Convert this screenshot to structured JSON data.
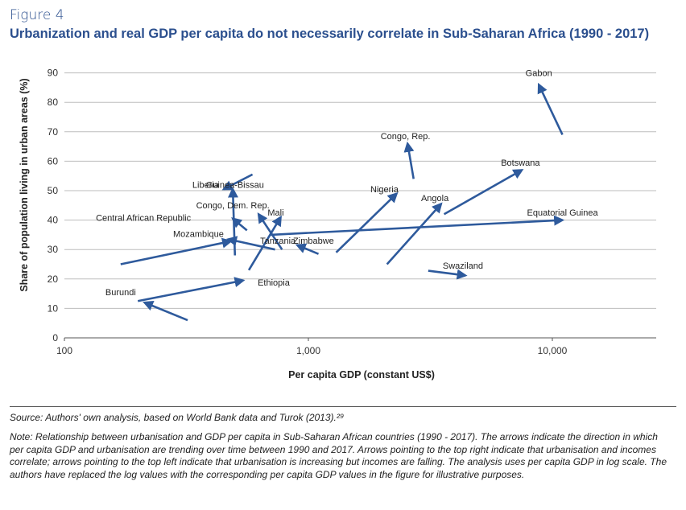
{
  "figure_label": "Figure 4",
  "source_text": "Source: Authors' own analysis, based on World Bank data and Turok (2013).²⁹",
  "note_text": "Note:  Relationship between urbanisation and GDP per capita in Sub-Saharan African countries (1990 - 2017). The arrows indicate the direction in which per capita GDP and urbanisation are trending over time between 1990 and 2017. Arrows pointing to the top right indicate that urbanisation and incomes correlate; arrows pointing to the top left indicate that urbanisation is increasing but incomes are falling. The analysis uses per capita GDP in log scale. The authors have replaced the log values with the corresponding per capita GDP values in the figure for illustrative purposes.",
  "colors": {
    "accent": "#2b4f8e",
    "arrow": "#2e5a9c",
    "grid": "#bdbdbd"
  },
  "chart_data": {
    "type": "scatter",
    "title": "Urbanization and real GDP per capita do not necessarily correlate in Sub-Saharan Africa (1990 - 2017)",
    "xlabel": "Per capita GDP (constant US$)",
    "ylabel": "Share of population living in urban areas (%)",
    "xscale": "log",
    "xlim": [
      100,
      30000
    ],
    "ylim": [
      0,
      92
    ],
    "xticks": [
      100,
      1000,
      10000
    ],
    "xtick_labels": [
      "100",
      "1,000",
      "10,000"
    ],
    "yticks": [
      0,
      10,
      20,
      30,
      40,
      50,
      60,
      70,
      80,
      90
    ],
    "grid": "horizontal",
    "series": [
      {
        "name": "Gabon",
        "from": [
          11000,
          69
        ],
        "to": [
          8800,
          86
        ]
      },
      {
        "name": "Congo, Rep.",
        "from": [
          2700,
          54
        ],
        "to": [
          2550,
          66
        ]
      },
      {
        "name": "Botswana",
        "from": [
          3600,
          42
        ],
        "to": [
          7500,
          57
        ]
      },
      {
        "name": "Liberia",
        "from": [
          590,
          55.5
        ],
        "to": [
          450,
          50.5
        ]
      },
      {
        "name": "Guinea-Bissau",
        "from": [
          500,
          28
        ],
        "to": [
          490,
          50.5
        ]
      },
      {
        "name": "Nigeria",
        "from": [
          1300,
          29
        ],
        "to": [
          2300,
          49
        ]
      },
      {
        "name": "Angola",
        "from": [
          2100,
          25
        ],
        "to": [
          3500,
          45.5
        ]
      },
      {
        "name": "Congo, Dem. Rep.",
        "from": [
          780,
          30
        ],
        "to": [
          625,
          42
        ]
      },
      {
        "name": "Mali",
        "from": [
          570,
          23
        ],
        "to": [
          770,
          41
        ]
      },
      {
        "name": "Equatorial Guinea",
        "from": [
          700,
          35
        ],
        "to": [
          11000,
          40
        ]
      },
      {
        "name": "Central African Republic",
        "from": [
          560,
          36.5
        ],
        "to": [
          490,
          40.5
        ]
      },
      {
        "name": "Mozambique",
        "from": [
          170,
          25
        ],
        "to": [
          480,
          32.8
        ]
      },
      {
        "name": "Tanzania",
        "from": [
          730,
          30
        ],
        "to": [
          470,
          33.5
        ]
      },
      {
        "name": "Zimbabwe",
        "from": [
          1100,
          28.5
        ],
        "to": [
          900,
          31.5
        ]
      },
      {
        "name": "Swaziland",
        "from": [
          3100,
          22.8
        ],
        "to": [
          4400,
          21.2
        ]
      },
      {
        "name": "Ethiopia",
        "from": [
          200,
          12.5
        ],
        "to": [
          540,
          19.5
        ]
      },
      {
        "name": "Burundi",
        "from": [
          320,
          6
        ],
        "to": [
          213,
          12
        ]
      }
    ],
    "labels": [
      {
        "text": "Gabon",
        "at": [
          8800,
          89
        ],
        "anchor": "middle"
      },
      {
        "text": "Congo, Rep.",
        "at": [
          2500,
          67.5
        ],
        "anchor": "middle"
      },
      {
        "text": "Botswana",
        "at": [
          7400,
          58.5
        ],
        "anchor": "middle"
      },
      {
        "text": "Liberia",
        "at": [
          430,
          51
        ],
        "anchor": "end"
      },
      {
        "text": "Guinea-Bissau",
        "at": [
          500,
          51
        ],
        "anchor": "middle"
      },
      {
        "text": "Nigeria",
        "at": [
          2050,
          49.5
        ],
        "anchor": "middle"
      },
      {
        "text": "Angola",
        "at": [
          3300,
          46.5
        ],
        "anchor": "middle"
      },
      {
        "text": "Congo, Dem. Rep.",
        "at": [
          490,
          44
        ],
        "anchor": "middle"
      },
      {
        "text": "Mali",
        "at": [
          735,
          41.5
        ],
        "anchor": "middle"
      },
      {
        "text": "Equatorial Guinea",
        "at": [
          11000,
          41.5
        ],
        "anchor": "middle"
      },
      {
        "text": "Central African Republic",
        "at": [
          330,
          39.8
        ],
        "anchor": "end"
      },
      {
        "text": "Mozambique",
        "at": [
          450,
          34.3
        ],
        "anchor": "end"
      },
      {
        "text": "Tanzania",
        "at": [
          750,
          32
        ],
        "anchor": "middle"
      },
      {
        "text": "Zimbabwe",
        "at": [
          1050,
          32
        ],
        "anchor": "middle"
      },
      {
        "text": "Swaziland",
        "at": [
          4300,
          23.5
        ],
        "anchor": "middle"
      },
      {
        "text": "Ethiopia",
        "at": [
          620,
          17.7
        ],
        "anchor": "start"
      },
      {
        "text": "Burundi",
        "at": [
          170,
          14.5
        ],
        "anchor": "middle"
      }
    ]
  }
}
